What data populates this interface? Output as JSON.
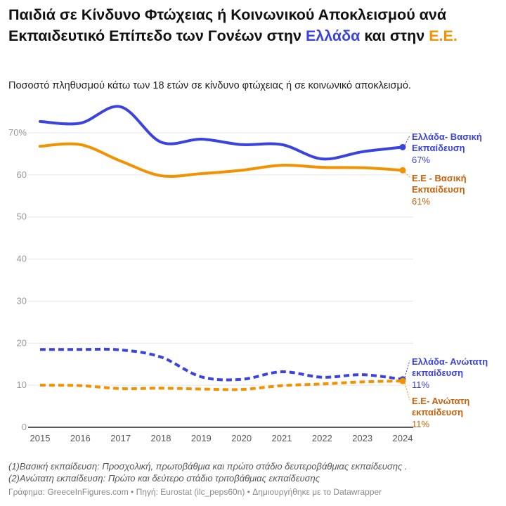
{
  "title": {
    "part1": "Παιδιά σε Κίνδυνο Φτώχειας ή Κοινωνικού Αποκλεισμού ανά Εκπαιδευτικό Επίπεδο των Γονέων στην ",
    "greece": "Ελλάδα",
    "part2": " και στην ",
    "eu": "Ε.Ε."
  },
  "subtitle": "Ποσοστό πληθυσμού κάτω των 18 ετών σε κίνδυνο φτώχειας ή σε κοινωνικό αποκλεισμό.",
  "notes": [
    "(1)Βασική εκπαίδευση: Προσχολική, πρωτοβάθμια και πρώτο στάδιο δευτεροβάθμιας εκπαίδευσης .",
    "(2)Ανώτατη εκπαίδευση: Πρώτο και δεύτερο στάδιο τριτοβάθμιας εκπαίδευσης"
  ],
  "credit": "Γράφημα: GreeceInFigures.com • Πηγή: Eurostat (ilc_peps60n) • Δημιουργήθηκε με το Datawrapper",
  "chart_data": {
    "type": "line",
    "x": [
      2015,
      2016,
      2017,
      2018,
      2019,
      2020,
      2021,
      2022,
      2023,
      2024
    ],
    "ylim": [
      0,
      76
    ],
    "yticks": [
      0,
      10,
      20,
      30,
      40,
      50,
      60,
      70
    ],
    "ytick_labels": [
      "0",
      "10",
      "20",
      "30",
      "40",
      "50",
      "60",
      "70%"
    ],
    "grid": true,
    "series": [
      {
        "name": "Ελλάδα- Βασική Εκπαίδευση",
        "end_label": "67%",
        "color": "#3a43e0",
        "label_color": "#3a43e0",
        "dashed": false,
        "values": [
          72.7,
          72.3,
          76.2,
          67.8,
          68.5,
          67.2,
          67.2,
          63.8,
          65.5,
          66.6
        ]
      },
      {
        "name": "Ε.Ε - Βασική Εκπαίδευση",
        "end_label": "61%",
        "color": "#f39200",
        "label_color": "#c8600a",
        "dashed": false,
        "values": [
          66.8,
          67.2,
          63.3,
          59.8,
          60.3,
          61.1,
          62.3,
          61.8,
          61.7,
          61.1
        ]
      },
      {
        "name": "Ελλάδα- Ανώτατη εκπαίδευση",
        "end_label": "11%",
        "color": "#3a43e0",
        "label_color": "#3a43e0",
        "dashed": true,
        "values": [
          18.5,
          18.5,
          18.4,
          16.7,
          12.0,
          11.4,
          13.2,
          11.9,
          12.5,
          11.4
        ]
      },
      {
        "name": "Ε.Ε- Ανώτατη εκπαίδευση",
        "end_label": "11%",
        "color": "#f39200",
        "label_color": "#c8600a",
        "dashed": true,
        "values": [
          10.0,
          9.9,
          9.2,
          9.3,
          9.1,
          9.0,
          9.9,
          10.3,
          10.8,
          11.0
        ]
      }
    ]
  }
}
